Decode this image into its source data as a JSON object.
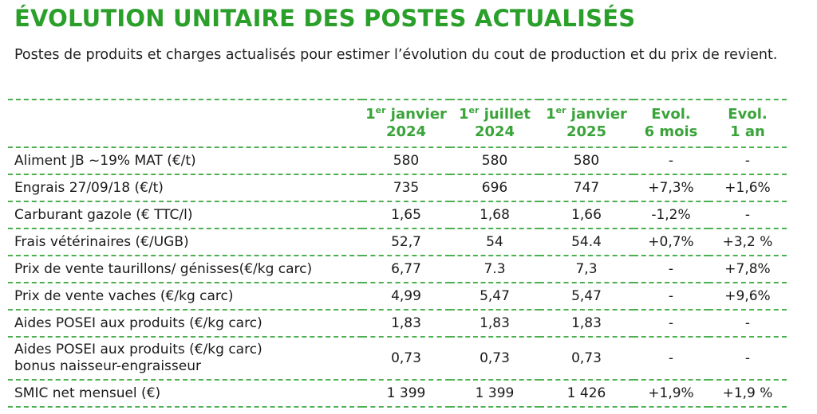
{
  "title": "ÉVOLUTION UNITAIRE DES POSTES ACTUALISÉS",
  "subtitle": "Postes de produits et charges actualisés pour estimer l’évolution du cout de production et du prix de revient.",
  "columns": [
    {
      "sup": "er",
      "line1": "1",
      "line1_rest": " janvier",
      "line2": "2024"
    },
    {
      "sup": "er",
      "line1": "1",
      "line1_rest": " juillet",
      "line2": "2024"
    },
    {
      "sup": "er",
      "line1": "1",
      "line1_rest": " janvier",
      "line2": "2025"
    },
    {
      "sup": "",
      "line1": "Evol.",
      "line1_rest": "",
      "line2": "6 mois"
    },
    {
      "sup": "",
      "line1": "Evol.",
      "line1_rest": "",
      "line2": "1 an"
    }
  ],
  "rows": [
    {
      "label": "Aliment JB ~19% MAT (€/t)",
      "label2": "",
      "values": [
        "580",
        "580",
        "580",
        "-",
        "-"
      ]
    },
    {
      "label": "Engrais 27/09/18 (€/t)",
      "label2": "",
      "values": [
        "735",
        "696",
        "747",
        "+7,3%",
        "+1,6%"
      ]
    },
    {
      "label": "Carburant gazole (€ TTC/l)",
      "label2": "",
      "values": [
        "1,65",
        "1,68",
        "1,66",
        "-1,2%",
        "-"
      ]
    },
    {
      "label": "Frais vétérinaires (€/UGB)",
      "label2": "",
      "values": [
        "52,7",
        "54",
        "54.4",
        "+0,7%",
        "+3,2 %"
      ]
    },
    {
      "label": "Prix de vente taurillons/ génisses(€/kg carc)",
      "label2": "",
      "values": [
        "6,77",
        "7.3",
        "7,3",
        "-",
        "+7,8%"
      ]
    },
    {
      "label": "Prix de vente vaches (€/kg carc)",
      "label2": "",
      "values": [
        "4,99",
        "5,47",
        "5,47",
        "-",
        "+9,6%"
      ]
    },
    {
      "label": "Aides POSEI aux produits (€/kg carc)",
      "label2": "",
      "values": [
        "1,83",
        "1,83",
        "1,83",
        "-",
        "-"
      ]
    },
    {
      "label": "Aides POSEI aux produits (€/kg carc)",
      "label2": "bonus naisseur-engraisseur",
      "values": [
        "0,73",
        "0,73",
        "0,73",
        "-",
        "-"
      ]
    },
    {
      "label": "SMIC net mensuel (€)",
      "label2": "",
      "values": [
        "1 399",
        "1 399",
        "1 426",
        "+1,9%",
        "+1,9 %"
      ]
    }
  ]
}
